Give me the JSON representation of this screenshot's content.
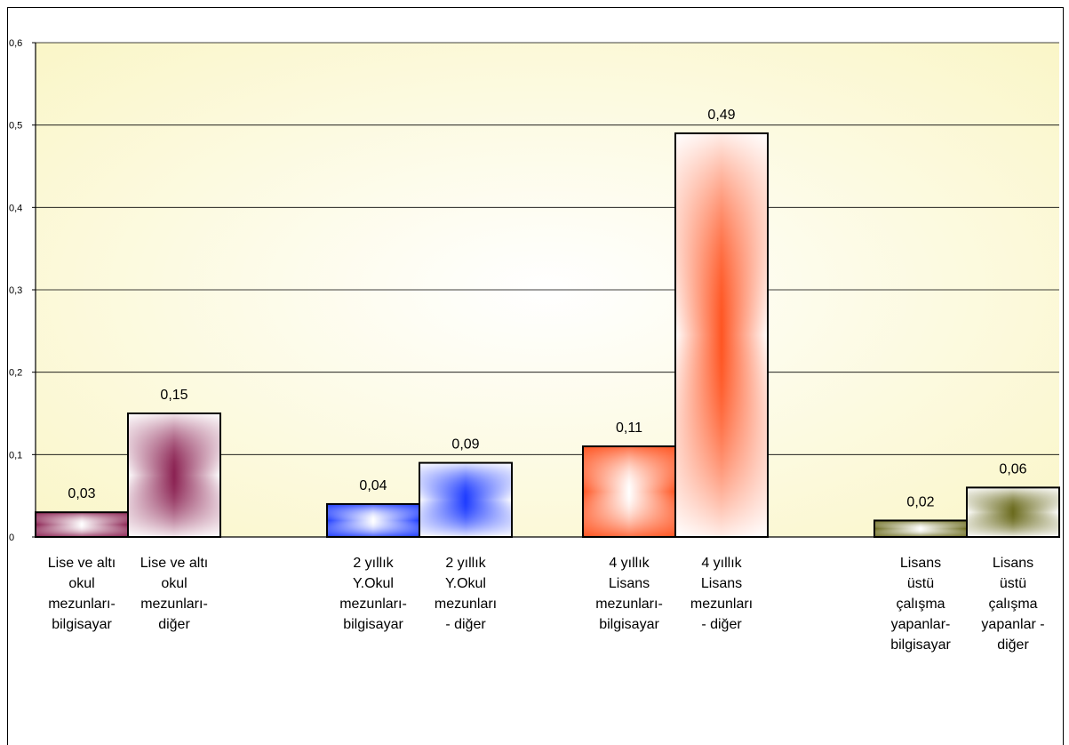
{
  "chart_data": {
    "type": "bar",
    "title": "",
    "xlabel": "",
    "ylabel": "",
    "ylim": [
      0,
      0.6
    ],
    "yticks": [
      "0",
      "0,1",
      "0,2",
      "0,3",
      "0,4",
      "0,5",
      "0,6"
    ],
    "grid": true,
    "legend": "none",
    "groups": [
      {
        "bars": [
          {
            "label": [
              "Lise ve altı",
              "okul",
              "mezunları-",
              "bilgisayar"
            ],
            "value": 0.03,
            "value_label": "0,03",
            "color": "#8B2252",
            "fill_style": "rect"
          },
          {
            "label": [
              "Lise ve altı",
              "okul",
              "mezunları-",
              "diğer"
            ],
            "value": 0.15,
            "value_label": "0,15",
            "color": "#8B2252",
            "fill_style": "rect-light"
          }
        ]
      },
      {
        "bars": [
          {
            "label": [
              "2 yıllık",
              "Y.Okul",
              "mezunları-",
              "bilgisayar"
            ],
            "value": 0.04,
            "value_label": "0,04",
            "color": "#1E3CFF",
            "fill_style": "rect"
          },
          {
            "label": [
              "2 yıllık",
              "Y.Okul",
              "mezunları",
              "- diğer"
            ],
            "value": 0.09,
            "value_label": "0,09",
            "color": "#1E3CFF",
            "fill_style": "rect-light"
          }
        ]
      },
      {
        "bars": [
          {
            "label": [
              "4 yıllık",
              "Lisans",
              "mezunları-",
              "bilgisayar"
            ],
            "value": 0.11,
            "value_label": "0,11",
            "color": "#FF5522",
            "fill_style": "rect"
          },
          {
            "label": [
              "4 yıllık",
              "Lisans",
              "mezunları",
              "- diğer"
            ],
            "value": 0.49,
            "value_label": "0,49",
            "color": "#FF5522",
            "fill_style": "rect-light"
          }
        ]
      },
      {
        "bars": [
          {
            "label": [
              "Lisans",
              "üstü",
              "çalışma",
              "yapanlar-",
              "bilgisayar"
            ],
            "value": 0.02,
            "value_label": "0,02",
            "color": "#6B6B1E",
            "fill_style": "rect"
          },
          {
            "label": [
              "Lisans",
              "üstü",
              "çalışma",
              "yapanlar -",
              "diğer"
            ],
            "value": 0.06,
            "value_label": "0,06",
            "color": "#6B6B1E",
            "fill_style": "rect-light"
          }
        ]
      }
    ],
    "plot_background": [
      "#FFFFFF",
      "#FAF6C8"
    ]
  }
}
